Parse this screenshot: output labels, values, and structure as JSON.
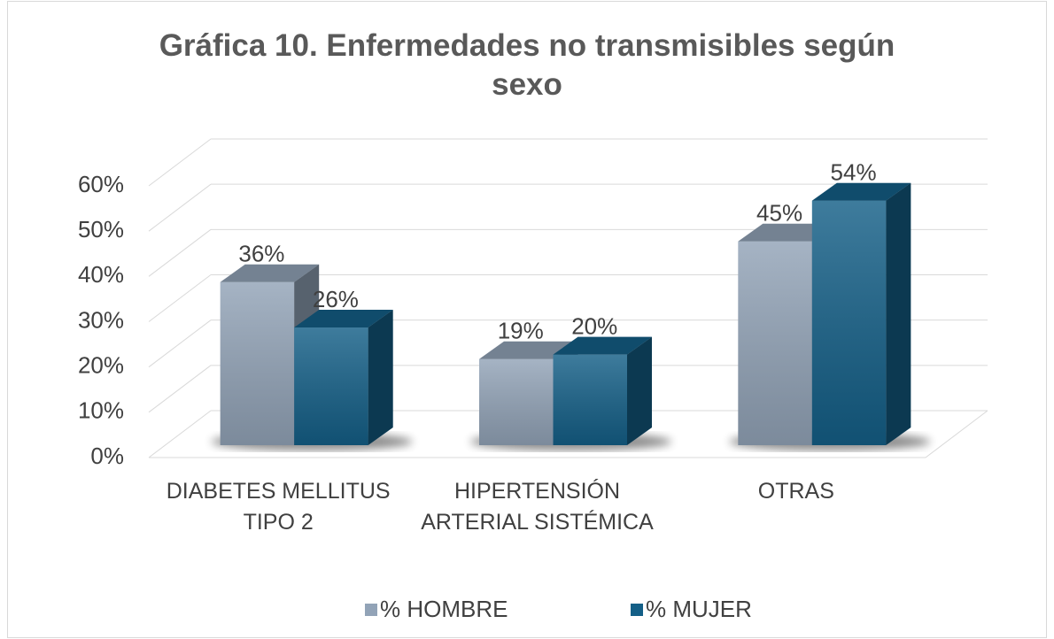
{
  "chart_data": {
    "type": "bar3d",
    "title": "Gráfica 10. Enfermedades no transmisibles según sexo",
    "categories": [
      "DIABETES MELLITUS TIPO 2",
      "HIPERTENSIÓN ARTERIAL SISTÉMICA",
      "OTRAS"
    ],
    "series": [
      {
        "name": "% HOMBRE",
        "color": "#92a3b7",
        "values": [
          36,
          19,
          45
        ],
        "value_labels": [
          "36%",
          "19%",
          "45%"
        ]
      },
      {
        "name": "% MUJER",
        "color": "#145f87",
        "values": [
          26,
          20,
          54
        ],
        "value_labels": [
          "26%",
          "20%",
          "54%"
        ]
      }
    ],
    "ylim": [
      0,
      60
    ],
    "yticks": [
      {
        "value": 0,
        "label": "0%"
      },
      {
        "value": 10,
        "label": "10%"
      },
      {
        "value": 20,
        "label": "20%"
      },
      {
        "value": 30,
        "label": "30%"
      },
      {
        "value": 40,
        "label": "40%"
      },
      {
        "value": 50,
        "label": "50%"
      },
      {
        "value": 60,
        "label": "60%"
      }
    ],
    "grid": true,
    "legend": "bottom"
  }
}
